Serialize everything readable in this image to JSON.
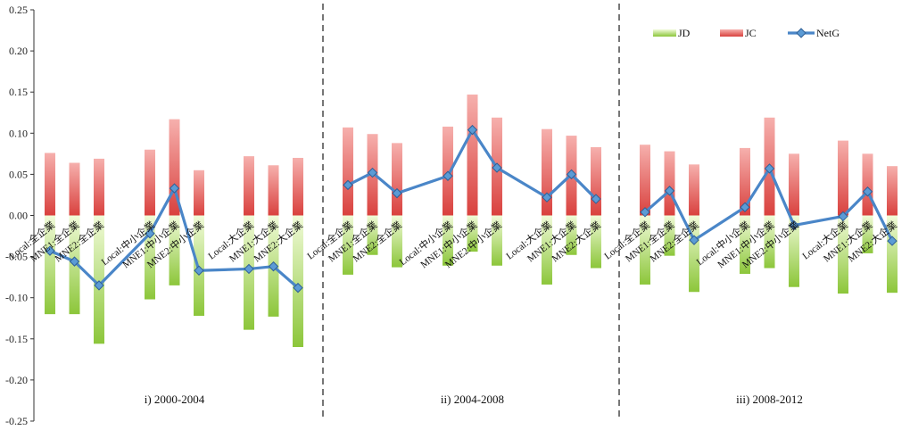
{
  "chart_data": {
    "type": "bar",
    "ylim": [
      -0.25,
      0.25
    ],
    "yticks": [
      "0.25",
      "0.20",
      "0.15",
      "0.10",
      "0.05",
      "0.00",
      "-0.05",
      "-0.10",
      "-0.15",
      "-0.20",
      "-0.25"
    ],
    "categories": [
      "Local:全企業",
      "MNE1:全企業",
      "MNE2:全企業",
      "Local:中小企業",
      "MNE1:中小企業",
      "MNE2:中小企業",
      "Local:大企業",
      "MNE1:大企業",
      "MNE2:大企業",
      "Local:全企業",
      "MNE1:全企業",
      "MNE2:全企業",
      "Local:中小企業",
      "MNE1:中小企業",
      "MNE2:中小企業",
      "Local:大企業",
      "MNE1:大企業",
      "MNE2:大企業",
      "Local:全企業",
      "MNE1:全企業",
      "MNE2:全企業",
      "Local:中小企業",
      "MNE1:中小企業",
      "MNE2:中小企業",
      "Local:大企業",
      "MNE1:大企業",
      "MNE2:大企業"
    ],
    "periods": [
      "i) 2000-2004",
      "ii) 2004-2008",
      "iii) 2008-2012"
    ],
    "series": [
      {
        "name": "JD",
        "color": "#9fd33c",
        "values": [
          -0.12,
          -0.12,
          -0.156,
          -0.102,
          -0.085,
          -0.122,
          -0.139,
          -0.123,
          -0.16,
          -0.072,
          -0.048,
          -0.063,
          -0.061,
          -0.044,
          -0.061,
          -0.084,
          -0.048,
          -0.064,
          -0.084,
          -0.049,
          -0.093,
          -0.071,
          -0.064,
          -0.087,
          -0.095,
          -0.046,
          -0.094
        ]
      },
      {
        "name": "JC",
        "color": "#e8605c",
        "values": [
          0.076,
          0.064,
          0.069,
          0.08,
          0.117,
          0.055,
          0.072,
          0.061,
          0.07,
          0.107,
          0.099,
          0.088,
          0.108,
          0.147,
          0.119,
          0.105,
          0.097,
          0.083,
          0.086,
          0.078,
          0.062,
          0.082,
          0.119,
          0.075,
          0.091,
          0.075,
          0.06
        ]
      },
      {
        "name": "NetG",
        "color": "#4a86c8",
        "values": [
          -0.043,
          -0.056,
          -0.085,
          -0.022,
          0.033,
          -0.067,
          -0.065,
          -0.062,
          -0.088,
          0.037,
          0.052,
          0.027,
          0.048,
          0.104,
          0.058,
          0.022,
          0.05,
          0.02,
          0.004,
          0.03,
          -0.03,
          0.01,
          0.057,
          -0.012,
          -0.001,
          0.029,
          -0.031
        ]
      }
    ],
    "legend": [
      "JD",
      "JC",
      "NetG"
    ]
  }
}
